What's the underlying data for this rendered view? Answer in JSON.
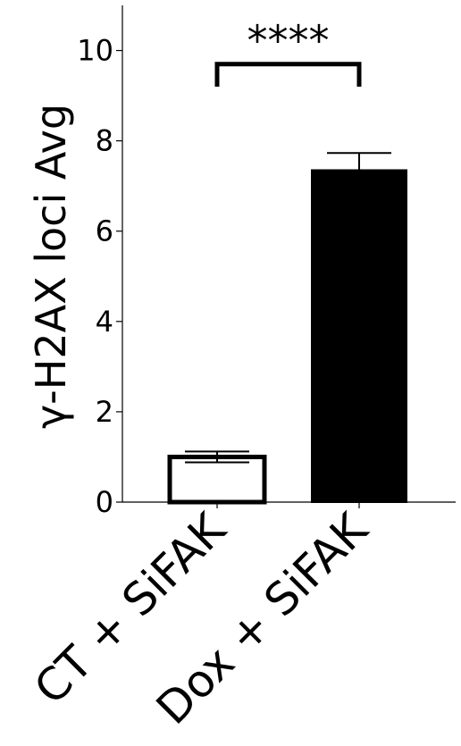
{
  "chart_data": {
    "type": "bar",
    "title": "",
    "xlabel": "",
    "ylabel": "γ-H2AX loci Avg",
    "categories": [
      "CT + SiFAK",
      "Dox + SiFAK"
    ],
    "values": [
      1.0,
      7.35
    ],
    "errors": [
      0.12,
      0.38
    ],
    "bar_fill": [
      "#ffffff",
      "#000000"
    ],
    "bar_stroke": "#000000",
    "ylim": [
      0,
      11
    ],
    "yticks": [
      0,
      2,
      4,
      6,
      8,
      10
    ],
    "ytick_labels": [
      "0",
      "2",
      "4",
      "6",
      "8",
      "10"
    ],
    "grid": false,
    "legend": "none",
    "significance": {
      "label": "****",
      "between": [
        0,
        1
      ],
      "y": 9.7,
      "drop_to": 9.2
    }
  }
}
